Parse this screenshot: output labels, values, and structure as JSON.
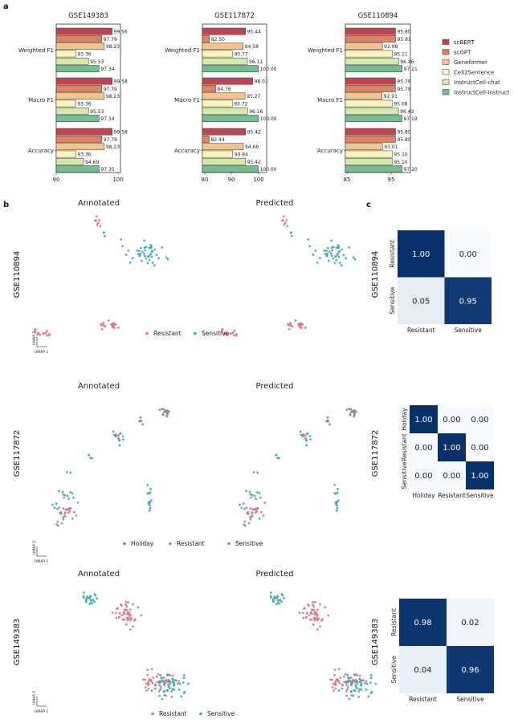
{
  "panel_labels": {
    "a": "a",
    "b": "b",
    "c": "c"
  },
  "colors": {
    "scBERT": "#bd4451",
    "scGPT": "#de8260",
    "Geneformer": "#f4c48f",
    "Cell2Sentence": "#fcf3bd",
    "InstructCell-chat": "#d5eaa9",
    "InstructCell-instruct": "#74bd8e",
    "Resistant": "#e07386",
    "Sensitive": "#3fa9b0",
    "Holiday": "#7d7d7d",
    "heat_low": "#f7fbff",
    "heat_high": "#08306b"
  },
  "chart_data": [
    {
      "type": "bar",
      "orientation": "horizontal",
      "title": "GSE149383",
      "categories": [
        "Weighted F1",
        "Macro F1",
        "Accuracy"
      ],
      "xlim": [
        90,
        101
      ],
      "xticks": [
        "90",
        "100"
      ],
      "series": [
        {
          "name": "scBERT",
          "values": [
            99.56,
            99.58,
            99.58
          ]
        },
        {
          "name": "scGPT",
          "values": [
            97.79,
            97.79,
            97.79
          ]
        },
        {
          "name": "Geneformer",
          "values": [
            98.23,
            98.23,
            98.23
          ]
        },
        {
          "name": "Cell2Sentence",
          "values": [
            93.36,
            93.36,
            93.36
          ]
        },
        {
          "name": "InstructCell-chat",
          "values": [
            95.53,
            95.53,
            94.69
          ]
        },
        {
          "name": "InstructCell-instruct",
          "values": [
            97.34,
            97.34,
            97.35
          ]
        }
      ],
      "labels": [
        [
          "99.56",
          "97.79",
          "98.23",
          "93.36",
          "95.53",
          "97.34"
        ],
        [
          "99.58",
          "97.79",
          "98.23",
          "93.36",
          "95.53",
          "97.34"
        ],
        [
          "99.58",
          "97.79",
          "98.23",
          "93.36",
          "94.69",
          "97.35"
        ]
      ]
    },
    {
      "type": "bar",
      "orientation": "horizontal",
      "title": "GSE117872",
      "categories": [
        "Weighted F1",
        "Macro F1",
        "Accuracy"
      ],
      "xlim": [
        80,
        103
      ],
      "xticks": [
        "80",
        "90",
        "100"
      ],
      "series": [
        {
          "name": "scBERT",
          "values": [
            95.44,
            98.01,
            95.42
          ]
        },
        {
          "name": "scGPT",
          "values": [
            82.5,
            84.76,
            82.44
          ]
        },
        {
          "name": "Geneformer",
          "values": [
            94.58,
            95.27,
            94.66
          ]
        },
        {
          "name": "Cell2Sentence",
          "values": [
            90.77,
            90.72,
            90.84
          ]
        },
        {
          "name": "InstructCell-chat",
          "values": [
            96.11,
            96.16,
            95.42
          ]
        },
        {
          "name": "InstructCell-instruct",
          "values": [
            100.0,
            100.0,
            100.0
          ]
        }
      ],
      "labels": [
        [
          "95.44",
          "82.50",
          "94.58",
          "90.77",
          "96.11",
          "100.00"
        ],
        [
          "98.01",
          "84.76",
          "95.27",
          "90.72",
          "96.16",
          "100.00"
        ],
        [
          "95.42",
          "82.44",
          "94.66",
          "90.84",
          "95.42",
          "100.00"
        ]
      ]
    },
    {
      "type": "bar",
      "orientation": "horizontal",
      "title": "GSE110894",
      "categories": [
        "Weighted F1",
        "Macro F1",
        "Accuracy"
      ],
      "xlim": [
        85,
        99
      ],
      "xticks": [
        "85",
        "95"
      ],
      "series": [
        {
          "name": "scBERT",
          "values": [
            95.8,
            95.79,
            95.8
          ]
        },
        {
          "name": "scGPT",
          "values": [
            95.81,
            95.79,
            95.8
          ]
        },
        {
          "name": "Geneformer",
          "values": [
            92.98,
            92.91,
            93.01
          ]
        },
        {
          "name": "Cell2Sentence",
          "values": [
            95.11,
            95.08,
            95.1
          ]
        },
        {
          "name": "InstructCell-chat",
          "values": [
            96.46,
            96.43,
            95.1
          ]
        },
        {
          "name": "InstructCell-instruct",
          "values": [
            97.21,
            97.19,
            97.2
          ]
        }
      ],
      "labels": [
        [
          "95.80",
          "95.81",
          "92.98",
          "95.11",
          "96.46",
          "97.21"
        ],
        [
          "95.79",
          "95.79",
          "92.91",
          "95.08",
          "96.43",
          "97.19"
        ],
        [
          "95.80",
          "95.80",
          "93.01",
          "95.10",
          "95.10",
          "97.20"
        ]
      ]
    },
    {
      "type": "heatmap",
      "dataset": "GSE110894",
      "row_labels": [
        "Resistant",
        "Sensitive"
      ],
      "col_labels": [
        "Resistant",
        "Sensitive"
      ],
      "values": [
        [
          1.0,
          0.0
        ],
        [
          0.05,
          0.95
        ]
      ],
      "cell_text": [
        [
          "1.00",
          "0.00"
        ],
        [
          "0.05",
          "0.95"
        ]
      ]
    },
    {
      "type": "heatmap",
      "dataset": "GSE117872",
      "row_labels": [
        "Holiday",
        "Resistant",
        "Sensitive"
      ],
      "col_labels": [
        "Holiday",
        "Resistant",
        "Sensitive"
      ],
      "values": [
        [
          1.0,
          0.0,
          0.0
        ],
        [
          0.0,
          1.0,
          0.0
        ],
        [
          0.0,
          0.0,
          1.0
        ]
      ],
      "cell_text": [
        [
          "1.00",
          "0.00",
          "0.00"
        ],
        [
          "0.00",
          "1.00",
          "0.00"
        ],
        [
          "0.00",
          "0.00",
          "1.00"
        ]
      ]
    },
    {
      "type": "heatmap",
      "dataset": "GSE149383",
      "row_labels": [
        "Resistant",
        "Sensitive"
      ],
      "col_labels": [
        "Resistant",
        "Sensitive"
      ],
      "values": [
        [
          0.98,
          0.02
        ],
        [
          0.04,
          0.96
        ]
      ],
      "cell_text": [
        [
          "0.98",
          "0.02"
        ],
        [
          "0.04",
          "0.96"
        ]
      ]
    },
    {
      "type": "scatter",
      "dataset": "GSE110894",
      "titles": [
        "Annotated",
        "Predicted"
      ],
      "axis_labels": [
        "UMAP 1",
        "UMAP 2"
      ],
      "legend": [
        "Resistant",
        "Sensitive"
      ]
    },
    {
      "type": "scatter",
      "dataset": "GSE117872",
      "titles": [
        "Annotated",
        "Predicted"
      ],
      "axis_labels": [
        "UMAP 1",
        "UMAP 2"
      ],
      "legend": [
        "Holiday",
        "Resistant",
        "Sensitive"
      ]
    },
    {
      "type": "scatter",
      "dataset": "GSE149383",
      "titles": [
        "Annotated",
        "Predicted"
      ],
      "axis_labels": [
        "UMAP 1",
        "UMAP 2"
      ],
      "legend": [
        "Resistant",
        "Sensitive"
      ]
    }
  ],
  "legend_items": [
    "scBERT",
    "scGPT",
    "Geneformer",
    "Cell2Sentence",
    "InstructCell-chat",
    "InstructCell-instruct"
  ]
}
